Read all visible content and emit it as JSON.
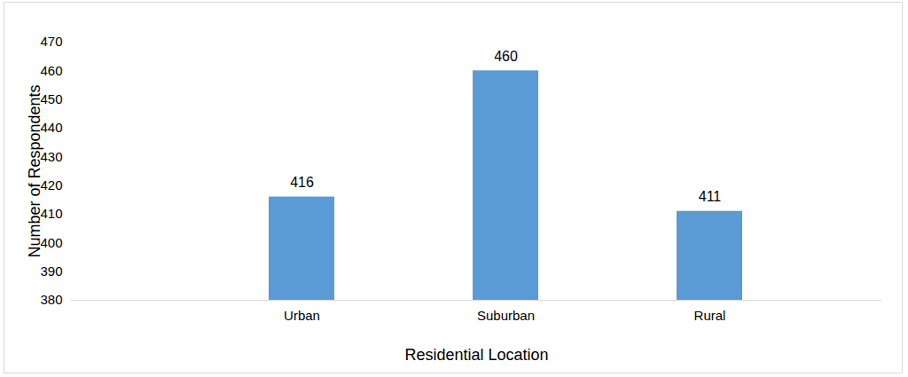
{
  "chart_data": {
    "type": "bar",
    "categories": [
      "Urban",
      "Suburban",
      "Rural"
    ],
    "values": [
      416,
      460,
      411
    ],
    "color": "#5b9bd5",
    "xlabel": "Residential Location",
    "ylabel": "Number of Respondents",
    "ylim": [
      380,
      470
    ],
    "yticks": [
      380,
      390,
      400,
      410,
      420,
      430,
      440,
      450,
      460,
      470
    ],
    "grid": false,
    "data_labels": true
  }
}
